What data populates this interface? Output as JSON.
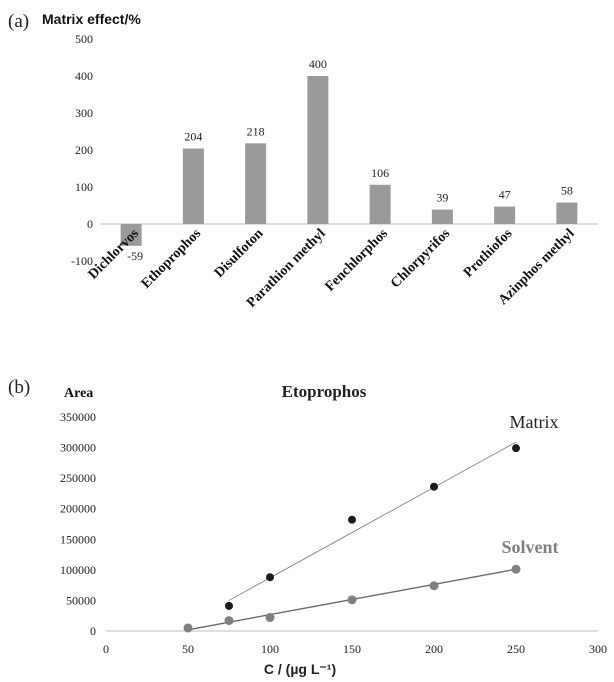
{
  "panel_a": {
    "label": "(a)",
    "ytitle": "Matrix effect/%"
  },
  "panel_b": {
    "label": "(b)",
    "ytitle": "Area",
    "xtitle": "C / (µg L⁻¹)"
  },
  "colors": {
    "bar": "#9a9a9a",
    "matrix": "#1a1a1a",
    "solvent": "#808080",
    "axis": "#bfbfbf",
    "text": "#222222"
  },
  "chart_data": [
    {
      "type": "bar",
      "categories": [
        "Dichlorvos",
        "Ethoprophos",
        "Disulfoton",
        "Parathion methyl",
        "Fenchlorphos",
        "Chlorpyrifos",
        "Prothiofos",
        "Azinphos methyl"
      ],
      "values": [
        -59,
        204,
        218,
        400,
        106,
        39,
        47,
        58
      ],
      "data_labels": [
        "-59",
        "204",
        "218",
        "400",
        "106",
        "39",
        "47",
        "58"
      ],
      "ylim": [
        -100,
        500
      ],
      "yticks": [
        -100,
        0,
        100,
        200,
        300,
        400,
        500
      ],
      "grid": false
    },
    {
      "type": "scatter",
      "title": "Etoprophos",
      "xlim": [
        0,
        300
      ],
      "ylim": [
        0,
        350000
      ],
      "xticks": [
        0,
        50,
        100,
        150,
        200,
        250,
        300
      ],
      "yticks": [
        0,
        50000,
        100000,
        150000,
        200000,
        250000,
        300000,
        350000
      ],
      "grid": false,
      "series": [
        {
          "name": "Matrix",
          "x": [
            75,
            100,
            150,
            200,
            250
          ],
          "y": [
            41000,
            88000,
            182000,
            236000,
            299000
          ],
          "fit": [
            [
              75,
              50000
            ],
            [
              250,
              309000
            ]
          ]
        },
        {
          "name": "Solvent",
          "x": [
            50,
            75,
            100,
            150,
            200,
            250
          ],
          "y": [
            5000,
            17000,
            22000,
            51000,
            74000,
            101000
          ],
          "fit": [
            [
              50,
              2000
            ],
            [
              250,
              101000
            ]
          ]
        }
      ]
    }
  ]
}
